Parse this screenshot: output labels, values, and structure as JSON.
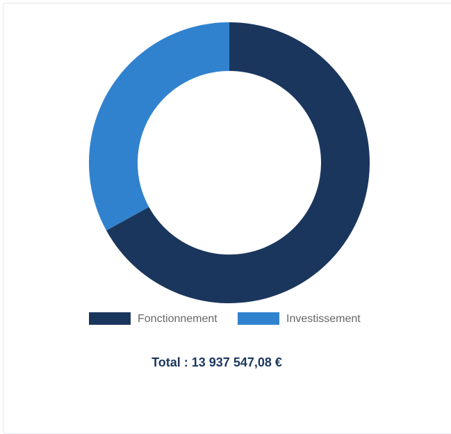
{
  "chart_data": {
    "type": "pie",
    "categories": [
      "Fonctionnement",
      "Investissement"
    ],
    "values": [
      67,
      33
    ],
    "colors": [
      "#1b365d",
      "#3182ce"
    ],
    "total": "Total : 13 937 547,08 €"
  }
}
